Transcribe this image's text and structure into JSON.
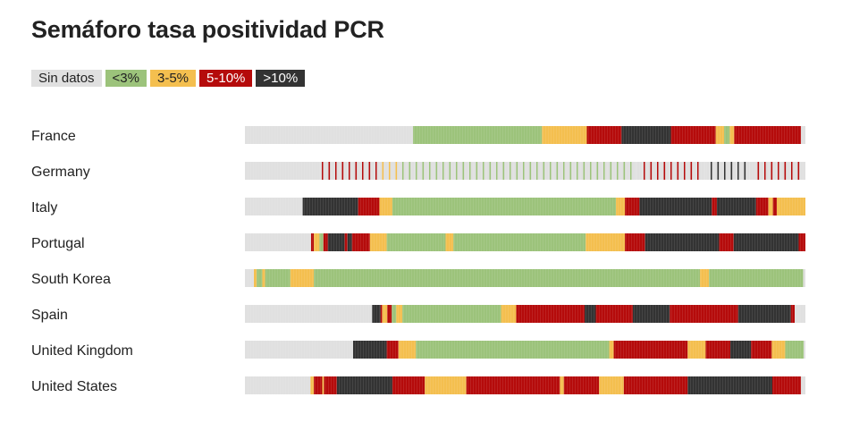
{
  "chart_data": {
    "type": "heatmap",
    "title": "Semáforo tasa positividad PCR",
    "legend": [
      {
        "key": "none",
        "label": "Sin datos",
        "color": "#e0e0e0",
        "text_color": "#222222"
      },
      {
        "key": "low",
        "label": "<3%",
        "color": "#9cc37b",
        "text_color": "#222222"
      },
      {
        "key": "mid",
        "label": "3-5%",
        "color": "#f4bf4f",
        "text_color": "#222222"
      },
      {
        "key": "high",
        "label": "5-10%",
        "color": "#b50b0b",
        "text_color": "#ffffff"
      },
      {
        "key": "vhigh",
        "label": ">10%",
        "color": "#333333",
        "text_color": "#ffffff"
      }
    ],
    "x_range": [
      0,
      100
    ],
    "rows": [
      {
        "country": "France",
        "segments": [
          [
            "none",
            30
          ],
          [
            "low",
            53
          ],
          [
            "mid",
            61
          ],
          [
            "high",
            67.2
          ],
          [
            "vhigh",
            76
          ],
          [
            "high",
            84
          ],
          [
            "mid",
            85.5
          ],
          [
            "low",
            86.5
          ],
          [
            "mid",
            87.3
          ],
          [
            "high",
            99.2
          ],
          [
            "none",
            100
          ]
        ]
      },
      {
        "country": "Germany",
        "sparse": true,
        "segments": [
          [
            "none",
            13.3
          ],
          [
            "high",
            24
          ],
          [
            "mid",
            27.7
          ],
          [
            "low",
            69.8
          ],
          [
            "mid",
            70.8
          ],
          [
            "high",
            82
          ],
          [
            "vhigh",
            90
          ],
          [
            "high",
            100
          ]
        ]
      },
      {
        "country": "Italy",
        "segments": [
          [
            "none",
            10.3
          ],
          [
            "vhigh",
            20.2
          ],
          [
            "high",
            24
          ],
          [
            "mid",
            26.3
          ],
          [
            "low",
            66.2
          ],
          [
            "mid",
            67.8
          ],
          [
            "high",
            70.4
          ],
          [
            "vhigh",
            83.3
          ],
          [
            "high",
            84.2
          ],
          [
            "vhigh",
            91.2
          ],
          [
            "high",
            93.4
          ],
          [
            "mid",
            94.2
          ],
          [
            "high",
            94.9
          ],
          [
            "mid",
            100
          ]
        ]
      },
      {
        "country": "Portugal",
        "segments": [
          [
            "none",
            11.8
          ],
          [
            "high",
            12.3
          ],
          [
            "mid",
            13.3
          ],
          [
            "low",
            14
          ],
          [
            "high",
            14.8
          ],
          [
            "vhigh",
            17.8
          ],
          [
            "high",
            18.3
          ],
          [
            "vhigh",
            19.1
          ],
          [
            "high",
            22.3
          ],
          [
            "mid",
            25.3
          ],
          [
            "low",
            35.8
          ],
          [
            "mid",
            37.2
          ],
          [
            "low",
            60.8
          ],
          [
            "mid",
            67.8
          ],
          [
            "high",
            71.4
          ],
          [
            "vhigh",
            84.6
          ],
          [
            "high",
            87.2
          ],
          [
            "vhigh",
            98.8
          ],
          [
            "high",
            100
          ]
        ]
      },
      {
        "country": "South Korea",
        "segments": [
          [
            "none",
            1.6
          ],
          [
            "mid",
            2.1
          ],
          [
            "low",
            3.1
          ],
          [
            "mid",
            3.6
          ],
          [
            "low",
            8.1
          ],
          [
            "mid",
            12.3
          ],
          [
            "low",
            81.2
          ],
          [
            "mid",
            82.8
          ],
          [
            "low",
            99.6
          ],
          [
            "none",
            100
          ]
        ]
      },
      {
        "country": "Spain",
        "segments": [
          [
            "none",
            22.7
          ],
          [
            "vhigh",
            24.2
          ],
          [
            "high",
            24.5
          ],
          [
            "mid",
            25.4
          ],
          [
            "high",
            26.2
          ],
          [
            "low",
            27
          ],
          [
            "mid",
            28.1
          ],
          [
            "low",
            45.7
          ],
          [
            "mid",
            48.4
          ],
          [
            "high",
            60.6
          ],
          [
            "vhigh",
            62.6
          ],
          [
            "high",
            69.2
          ],
          [
            "vhigh",
            75.8
          ],
          [
            "high",
            88
          ],
          [
            "vhigh",
            97.4
          ],
          [
            "high",
            98.1
          ],
          [
            "none",
            100
          ]
        ]
      },
      {
        "country": "United Kingdom",
        "segments": [
          [
            "none",
            19.3
          ],
          [
            "vhigh",
            25.3
          ],
          [
            "high",
            27.4
          ],
          [
            "mid",
            30.5
          ],
          [
            "low",
            65
          ],
          [
            "mid",
            65.8
          ],
          [
            "high",
            79
          ],
          [
            "mid",
            82.2
          ],
          [
            "high",
            86.6
          ],
          [
            "vhigh",
            90.3
          ],
          [
            "high",
            94
          ],
          [
            "mid",
            96.4
          ],
          [
            "low",
            99.7
          ],
          [
            "none",
            100
          ]
        ]
      },
      {
        "country": "United States",
        "segments": [
          [
            "none",
            11.7
          ],
          [
            "mid",
            12.3
          ],
          [
            "high",
            13.8
          ],
          [
            "mid",
            14.1
          ],
          [
            "high",
            16.4
          ],
          [
            "vhigh",
            26.3
          ],
          [
            "high",
            32.1
          ],
          [
            "mid",
            39.5
          ],
          [
            "high",
            56.2
          ],
          [
            "mid",
            56.9
          ],
          [
            "high",
            63.2
          ],
          [
            "mid",
            67.2
          ],
          [
            "mid",
            67.6
          ],
          [
            "high",
            79
          ],
          [
            "vhigh",
            94.1
          ],
          [
            "high",
            99.2
          ],
          [
            "none",
            100
          ]
        ]
      }
    ]
  }
}
